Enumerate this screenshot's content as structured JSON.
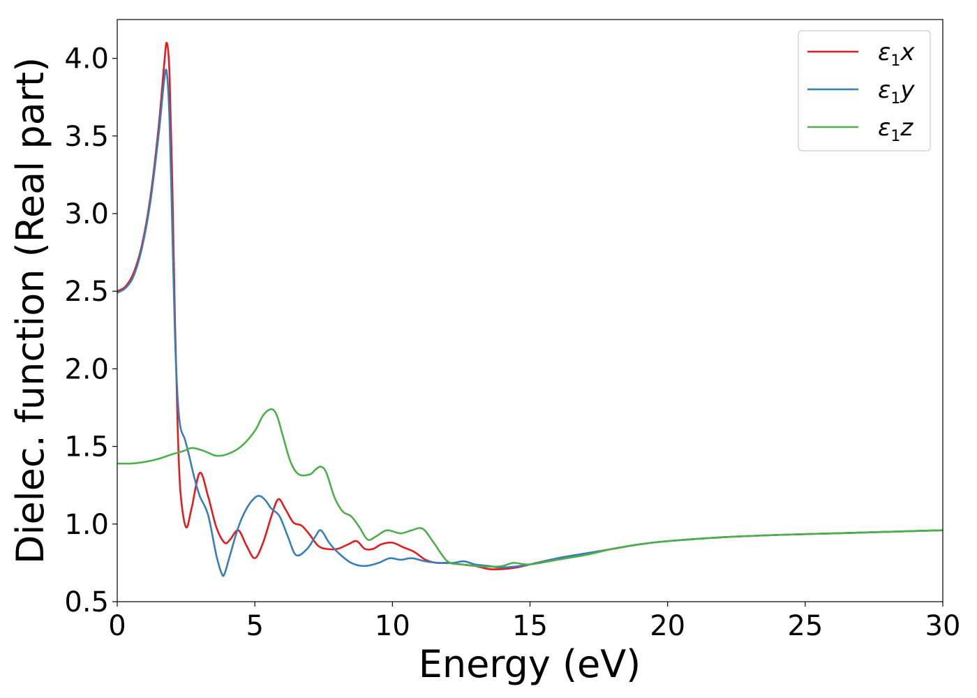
{
  "chart_data": {
    "type": "line",
    "title": "",
    "xlabel": "Energy (eV)",
    "ylabel": "Dielec. function (Real part)",
    "xlim": [
      0,
      30
    ],
    "ylim": [
      0.5,
      4.25
    ],
    "xticks": [
      0,
      5,
      10,
      15,
      20,
      25,
      30
    ],
    "xtick_labels": [
      "0",
      "5",
      "10",
      "15",
      "20",
      "25",
      "30"
    ],
    "yticks": [
      0.5,
      1.0,
      1.5,
      2.0,
      2.5,
      3.0,
      3.5,
      4.0
    ],
    "ytick_labels": [
      "0.5",
      "1.0",
      "1.5",
      "2.0",
      "2.5",
      "3.0",
      "3.5",
      "4.0"
    ],
    "grid": false,
    "legend_position": "top-right",
    "series": [
      {
        "name": "ε1x",
        "name_base": "ε",
        "name_sub": "1",
        "name_suffix": "x",
        "color": "#e41a1c",
        "x": [
          0,
          0.3,
          0.6,
          0.9,
          1.2,
          1.5,
          1.7,
          1.8,
          1.9,
          2.0,
          2.1,
          2.2,
          2.3,
          2.5,
          2.7,
          3.0,
          3.3,
          3.6,
          3.9,
          4.1,
          4.4,
          4.7,
          5.0,
          5.3,
          5.6,
          5.85,
          6.1,
          6.4,
          6.7,
          7.0,
          7.3,
          7.6,
          8.0,
          8.4,
          8.7,
          9.0,
          9.3,
          9.6,
          10.0,
          10.4,
          10.8,
          11.2,
          11.6,
          12.0,
          12.5,
          13.0,
          13.5,
          14.0,
          14.5,
          15.0,
          16.0,
          17.0,
          18.0,
          19.0,
          20.0,
          22.0,
          24.0,
          26.0,
          28.0,
          30.0
        ],
        "y": [
          2.5,
          2.53,
          2.62,
          2.8,
          3.1,
          3.55,
          3.95,
          4.1,
          3.9,
          3.2,
          2.3,
          1.6,
          1.2,
          0.98,
          1.1,
          1.33,
          1.18,
          0.98,
          0.88,
          0.9,
          0.96,
          0.86,
          0.78,
          0.88,
          1.05,
          1.16,
          1.1,
          1.01,
          0.99,
          0.93,
          0.86,
          0.84,
          0.84,
          0.87,
          0.89,
          0.84,
          0.84,
          0.87,
          0.88,
          0.85,
          0.82,
          0.77,
          0.75,
          0.75,
          0.74,
          0.73,
          0.71,
          0.71,
          0.72,
          0.74,
          0.78,
          0.81,
          0.84,
          0.87,
          0.89,
          0.915,
          0.93,
          0.94,
          0.95,
          0.96
        ]
      },
      {
        "name": "ε1y",
        "name_base": "ε",
        "name_sub": "1",
        "name_suffix": "y",
        "color": "#377eb8",
        "x": [
          0,
          0.3,
          0.6,
          0.9,
          1.2,
          1.5,
          1.7,
          1.8,
          1.9,
          2.0,
          2.1,
          2.2,
          2.3,
          2.45,
          2.6,
          2.8,
          3.0,
          3.3,
          3.6,
          3.8,
          3.9,
          4.1,
          4.4,
          4.7,
          5.0,
          5.2,
          5.4,
          5.6,
          5.9,
          6.2,
          6.5,
          6.9,
          7.2,
          7.4,
          7.7,
          8.0,
          8.5,
          9.0,
          9.5,
          9.9,
          10.3,
          10.7,
          11.2,
          11.7,
          12.2,
          12.6,
          13.0,
          13.5,
          14.0,
          15.0,
          16.0,
          17.0,
          18.0,
          19.0,
          20.0,
          22.0,
          24.0,
          26.0,
          28.0,
          30.0
        ],
        "y": [
          2.49,
          2.52,
          2.6,
          2.78,
          3.07,
          3.5,
          3.85,
          3.91,
          3.6,
          2.9,
          2.2,
          1.8,
          1.62,
          1.55,
          1.45,
          1.3,
          1.18,
          1.06,
          0.8,
          0.68,
          0.68,
          0.8,
          0.98,
          1.1,
          1.17,
          1.18,
          1.15,
          1.1,
          1.05,
          0.92,
          0.8,
          0.84,
          0.92,
          0.96,
          0.88,
          0.82,
          0.75,
          0.73,
          0.75,
          0.78,
          0.77,
          0.78,
          0.76,
          0.75,
          0.75,
          0.76,
          0.74,
          0.73,
          0.72,
          0.74,
          0.78,
          0.81,
          0.84,
          0.87,
          0.89,
          0.915,
          0.93,
          0.94,
          0.95,
          0.96
        ]
      },
      {
        "name": "ε1z",
        "name_base": "ε",
        "name_sub": "1",
        "name_suffix": "z",
        "color": "#4daf4a",
        "x": [
          0,
          0.5,
          1.0,
          1.5,
          2.0,
          2.4,
          2.7,
          3.0,
          3.3,
          3.6,
          4.0,
          4.5,
          5.0,
          5.3,
          5.6,
          5.8,
          6.0,
          6.3,
          6.6,
          7.0,
          7.2,
          7.4,
          7.6,
          7.9,
          8.2,
          8.5,
          8.8,
          9.1,
          9.4,
          9.8,
          10.3,
          10.7,
          11.1,
          11.5,
          12.0,
          12.5,
          13.0,
          13.5,
          14.0,
          14.4,
          15.0,
          16.0,
          17.0,
          18.0,
          19.0,
          20.0,
          22.0,
          24.0,
          26.0,
          28.0,
          30.0
        ],
        "y": [
          1.39,
          1.39,
          1.4,
          1.42,
          1.45,
          1.47,
          1.49,
          1.48,
          1.46,
          1.44,
          1.45,
          1.5,
          1.6,
          1.7,
          1.74,
          1.7,
          1.58,
          1.4,
          1.32,
          1.32,
          1.35,
          1.37,
          1.33,
          1.17,
          1.08,
          1.05,
          0.98,
          0.9,
          0.92,
          0.96,
          0.94,
          0.96,
          0.97,
          0.88,
          0.76,
          0.74,
          0.73,
          0.725,
          0.73,
          0.75,
          0.74,
          0.77,
          0.8,
          0.84,
          0.87,
          0.89,
          0.915,
          0.93,
          0.94,
          0.95,
          0.96
        ]
      }
    ]
  }
}
